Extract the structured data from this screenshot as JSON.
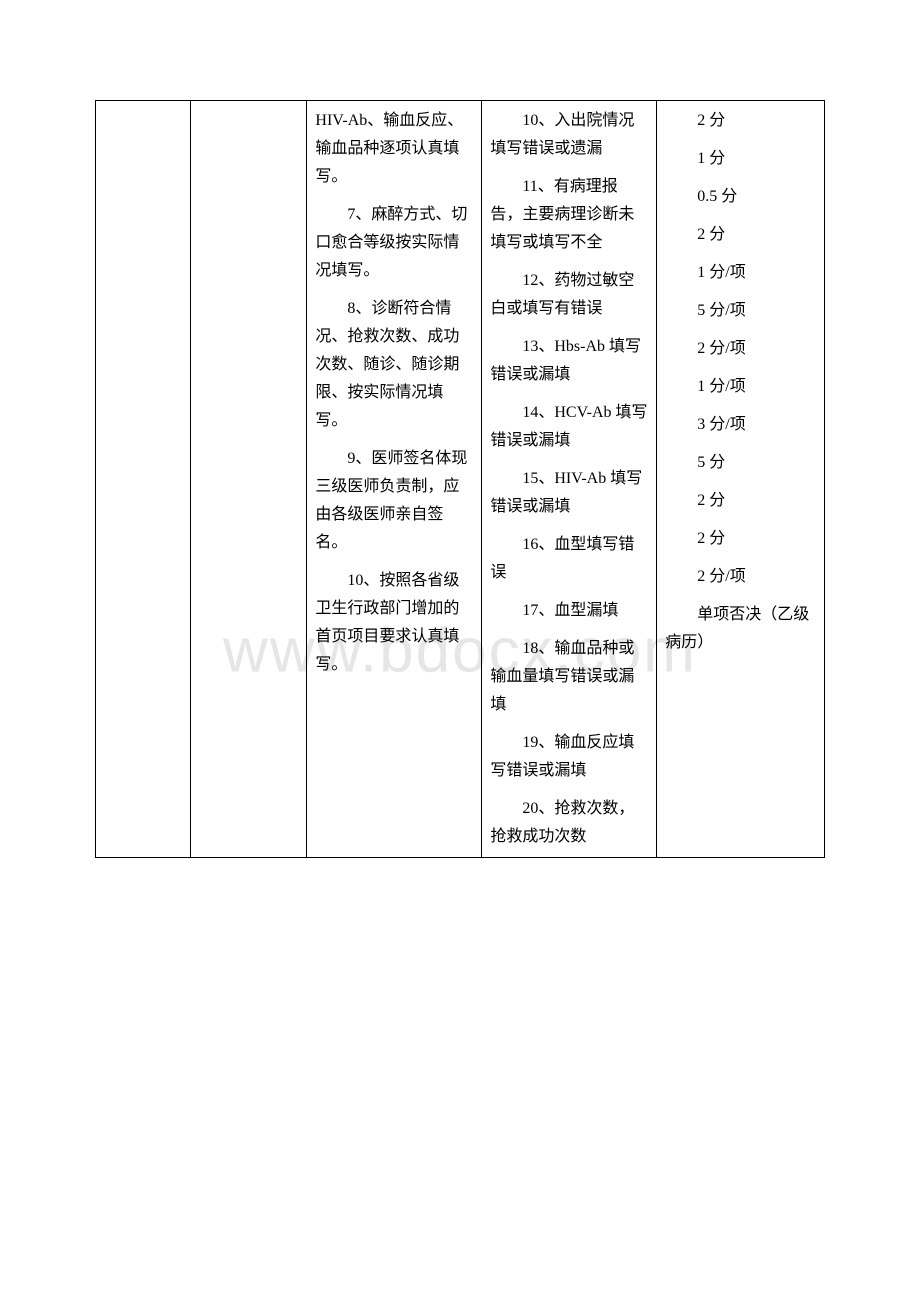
{
  "watermark": "www.bdocx.com",
  "table": {
    "columns": {
      "col1": "",
      "col2": "",
      "col3_paragraphs": [
        "HIV-Ab、输血反应、输血品种逐项认真填写。",
        "7、麻醉方式、切口愈合等级按实际情况填写。",
        "8、诊断符合情况、抢救次数、成功次数、随诊、随诊期限、按实际情况填写。",
        "9、医师签名体现三级医师负责制，应由各级医师亲自签名。",
        "10、按照各省级卫生行政部门增加的首页项目要求认真填写。"
      ],
      "col4_paragraphs": [
        "10、入出院情况填写错误或遗漏",
        "11、有病理报告，主要病理诊断未填写或填写不全",
        "12、药物过敏空白或填写有错误",
        "13、Hbs-Ab 填写错误或漏填",
        "14、HCV-Ab 填写错误或漏填",
        "15、HIV-Ab 填写错误或漏填",
        "16、血型填写错误",
        "17、血型漏填",
        "18、输血品种或输血量填写错误或漏填",
        "19、输血反应填写错误或漏填",
        "20、抢救次数，抢救成功次数"
      ],
      "col5_scores": [
        "2 分",
        "1 分",
        "0.5 分",
        "2 分",
        "1 分/项",
        "5 分/项",
        "2 分/项",
        "1 分/项",
        "3 分/项",
        "5 分",
        "2 分",
        "2 分",
        "2 分/项"
      ],
      "col5_note": "单项否决（乙级病历）"
    }
  }
}
